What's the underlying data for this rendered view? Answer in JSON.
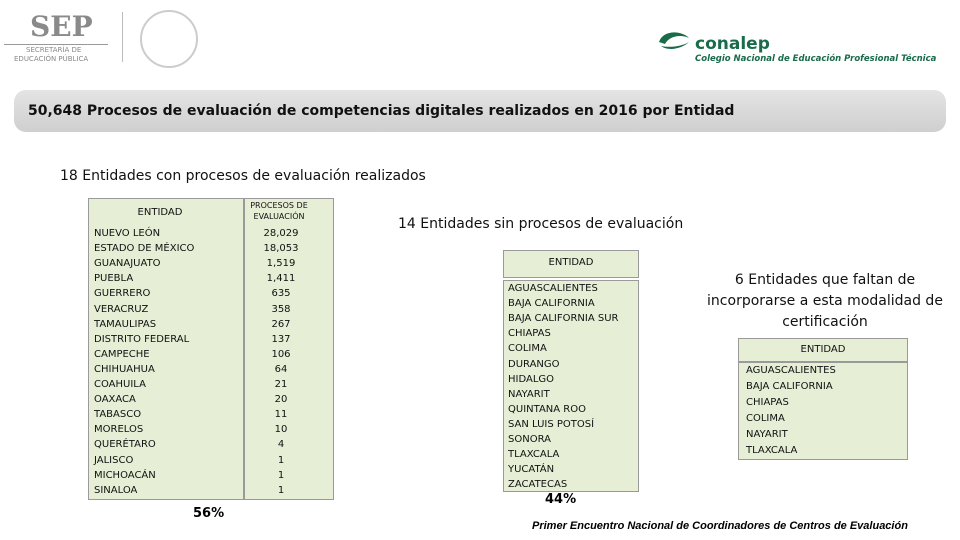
{
  "header": {
    "sep": "SEP",
    "sep_subtitle_1": "SECRETARÍA DE",
    "sep_subtitle_2": "EDUCACIÓN PÚBLICA",
    "conalep": "conalep",
    "conalep_subtitle": "Colegio Nacional de Educación Profesional Técnica"
  },
  "title": "50,648 Procesos de evaluación de competencias digitales realizados en 2016 por Entidad",
  "section_1": {
    "heading": "18 Entidades con procesos de evaluación realizados",
    "columns": [
      "ENTIDAD",
      "PROCESOS DE EVALUACIÓN"
    ],
    "rows": [
      [
        "NUEVO LEÓN",
        "28,029"
      ],
      [
        "ESTADO DE MÉXICO",
        "18,053"
      ],
      [
        "GUANAJUATO",
        "1,519"
      ],
      [
        "PUEBLA",
        "1,411"
      ],
      [
        "GUERRERO",
        "635"
      ],
      [
        "VERACRUZ",
        "358"
      ],
      [
        "TAMAULIPAS",
        "267"
      ],
      [
        "DISTRITO FEDERAL",
        "137"
      ],
      [
        "CAMPECHE",
        "106"
      ],
      [
        "CHIHUAHUA",
        "64"
      ],
      [
        "COAHUILA",
        "21"
      ],
      [
        "OAXACA",
        "20"
      ],
      [
        "TABASCO",
        "11"
      ],
      [
        "MORELOS",
        "10"
      ],
      [
        "QUERÉTARO",
        "4"
      ],
      [
        "JALISCO",
        "1"
      ],
      [
        "MICHOACÁN",
        "1"
      ],
      [
        "SINALOA",
        "1"
      ]
    ],
    "percent": "56%"
  },
  "section_2": {
    "heading": "14 Entidades sin procesos de evaluación",
    "column": "ENTIDAD",
    "rows": [
      "AGUASCALIENTES",
      "BAJA CALIFORNIA",
      "BAJA CALIFORNIA SUR",
      "CHIAPAS",
      "COLIMA",
      "DURANGO",
      "HIDALGO",
      "NAYARIT",
      "QUINTANA ROO",
      "SAN LUIS POTOSÍ",
      "SONORA",
      "TLAXCALA",
      "YUCATÁN",
      "ZACATECAS"
    ],
    "percent": "44%"
  },
  "section_3": {
    "heading": "6 Entidades que faltan de incorporarse a esta modalidad de certificación",
    "column": "ENTIDAD",
    "rows": [
      "AGUASCALIENTES",
      "BAJA CALIFORNIA",
      "CHIAPAS",
      "COLIMA",
      "NAYARIT",
      "TLAXCALA"
    ]
  },
  "footer": "Primer Encuentro Nacional de Coordinadores de Centros de Evaluación"
}
